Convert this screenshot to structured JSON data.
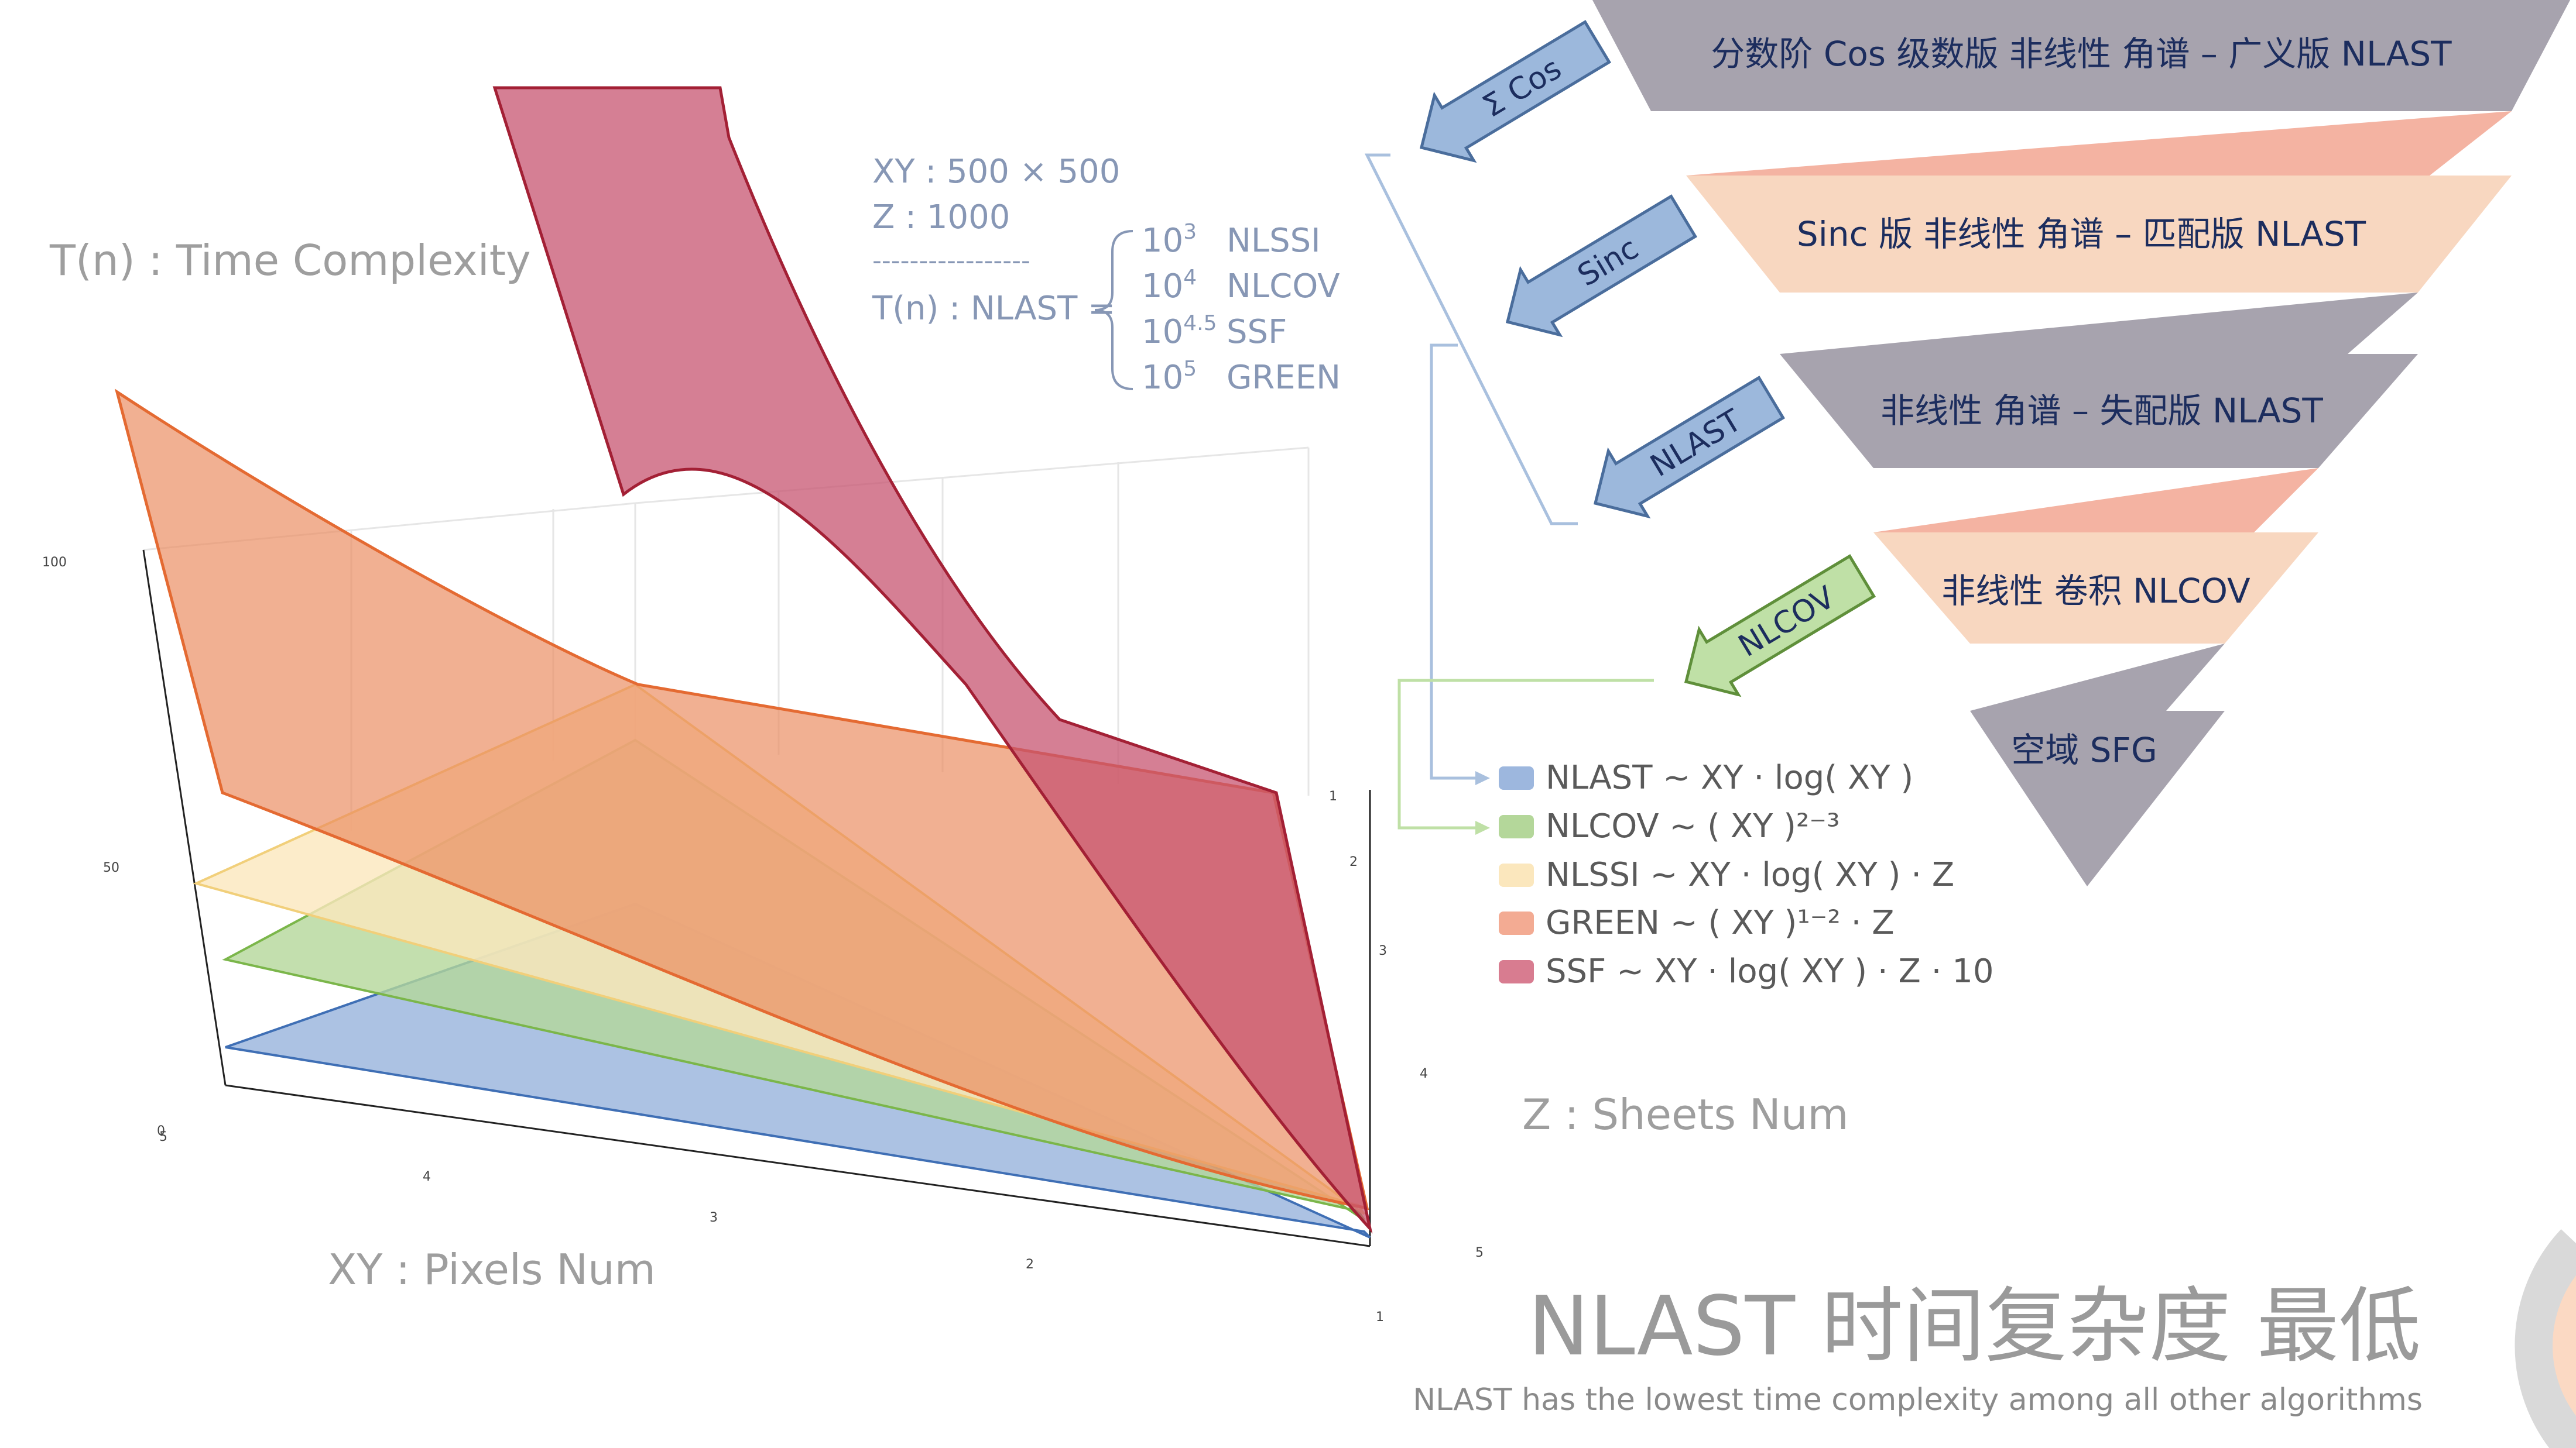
{
  "axes": {
    "tn_label": "T(n) : Time Complexity",
    "xy_label": "XY : Pixels Num",
    "z_label": "Z : Sheets Num",
    "t_ticks": [
      "100",
      "50",
      "0"
    ],
    "xy_ticks": [
      "5",
      "4",
      "3",
      "2",
      "1"
    ],
    "z_ticks": [
      "1",
      "2",
      "3",
      "4",
      "5"
    ]
  },
  "params": {
    "xy": "XY : 500 × 500",
    "z": "Z : 1000",
    "divider": "-----------------",
    "tn_prefix": "T(n) : NLAST ="
  },
  "orders": [
    {
      "base": "10",
      "exp": "3",
      "name": "NLSSI"
    },
    {
      "base": "10",
      "exp": "4",
      "name": "NLCOV"
    },
    {
      "base": "10",
      "exp": "4.5",
      "name": "SSF"
    },
    {
      "base": "10",
      "exp": "5",
      "name": "GREEN"
    }
  ],
  "legend": [
    {
      "color": "#9db7de",
      "text": "NLAST ~ XY · log( XY )"
    },
    {
      "color": "#b4d79a",
      "text": "NLCOV ~ ( XY )²⁻³"
    },
    {
      "color": "#fbe7bd",
      "text": "NLSSI ~ XY · log( XY ) · Z"
    },
    {
      "color": "#f3ab93",
      "text": "GREEN ~ ( XY )¹⁻² · Z"
    },
    {
      "color": "#d87c90",
      "text": "SSF ~ XY · log( XY ) · Z · 10"
    }
  ],
  "funnel": [
    {
      "text": "分数阶 Cos 级数版 非线性 角谱 – 广义版 NLAST",
      "color": "#a7a3ae"
    },
    {
      "text": "Sinc 版 非线性 角谱 – 匹配版 NLAST",
      "color": "#f8d7c0"
    },
    {
      "text": "非线性 角谱 – 失配版 NLAST",
      "color": "#a7a3ae"
    },
    {
      "text": "非线性 卷积 NLCOV",
      "color": "#f8d7c0"
    },
    {
      "text": "空域 SFG",
      "color": "#a7a3ae"
    }
  ],
  "arrows": [
    {
      "text": "Σ Cos",
      "color": "#9cb8dc"
    },
    {
      "text": "Sinc",
      "color": "#9cb8dc"
    },
    {
      "text": "NLAST",
      "color": "#9cb8dc"
    },
    {
      "text": "NLCOV",
      "color": "#bfe0a6"
    }
  ],
  "footer": {
    "title": "NLAST 时间复杂度 最低",
    "subtitle": "NLAST has the lowest time complexity among all other algorithms"
  },
  "series_colors": {
    "nlast": "#9db7de",
    "nlcov": "#b4d79a",
    "nlssi": "#fbe7bd",
    "green": "#f3ab93",
    "ssf": "#c75470"
  }
}
